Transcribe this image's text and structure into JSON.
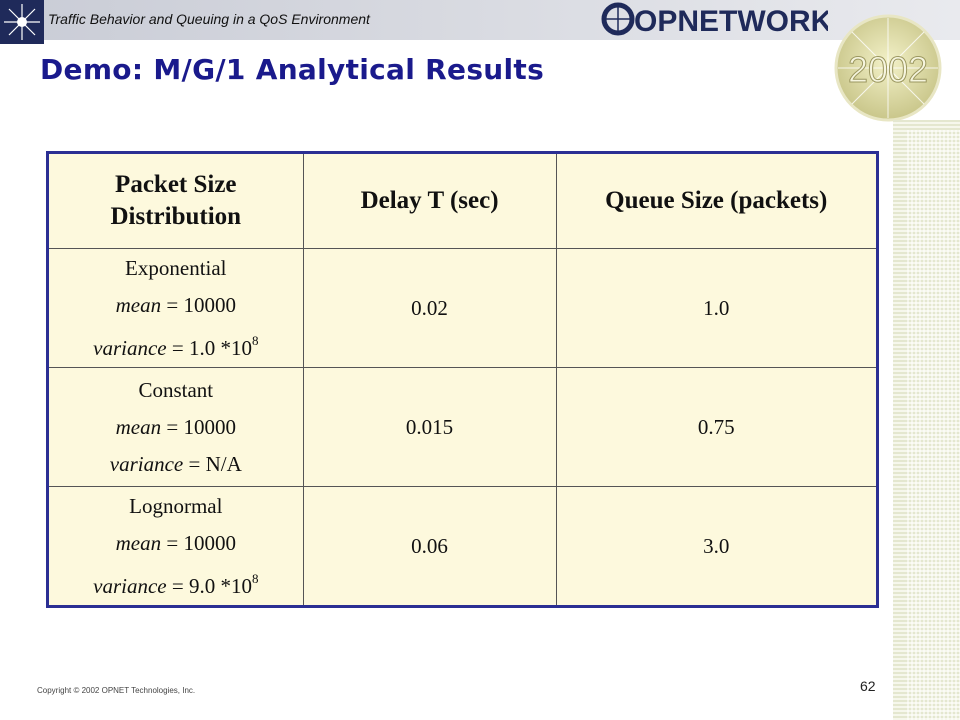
{
  "header": {
    "title": "Traffic Behavior and Queuing in a QoS Environment",
    "logo_text": "OPNETWORK",
    "badge_text": "2002"
  },
  "slide": {
    "title": "Demo:  M/G/1  Analytical Results"
  },
  "table": {
    "headers": [
      "Packet Size Distribution",
      "Delay T (sec)",
      "Queue Size (packets)"
    ],
    "header_lines": [
      "Packet Size",
      "Distribution"
    ],
    "mean_label": "mean",
    "variance_label": "variance",
    "rows": [
      {
        "distribution": "Exponential",
        "mean_value": "= 10000",
        "variance_value": "= 1.0 *10",
        "variance_exp": "8",
        "delay": "0.02",
        "queue": "1.0"
      },
      {
        "distribution": "Constant",
        "mean_value": "= 10000",
        "variance_value": "= N/A",
        "variance_exp": "",
        "delay": "0.015",
        "queue": "0.75"
      },
      {
        "distribution": "Lognormal",
        "mean_value": "= 10000",
        "variance_value": "= 9.0 *10",
        "variance_exp": "8",
        "delay": "0.06",
        "queue": "3.0"
      }
    ]
  },
  "footer": {
    "copyright": "Copyright © 2002 OPNET Technologies, Inc.",
    "page_number": "62"
  },
  "colors": {
    "title": "#1a1a8c",
    "table_border": "#2b2f93",
    "table_fill": "#fdf9dd",
    "logo_blue": "#1f2a5a"
  }
}
